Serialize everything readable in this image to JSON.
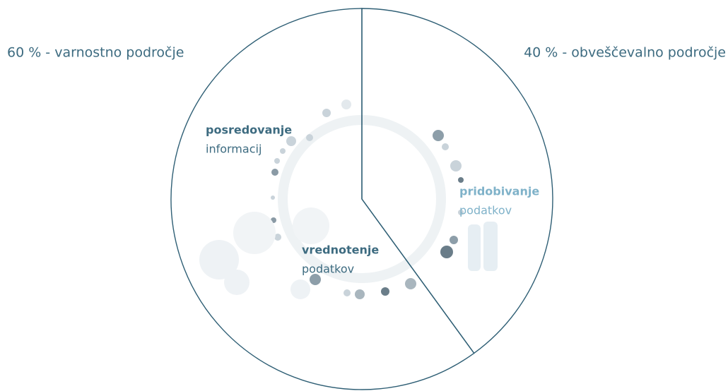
{
  "chart_data": {
    "type": "pie",
    "values": [
      60,
      40
    ],
    "value_labels": [
      "60 % - varnostno področje",
      "40 % - obveščevalno področje"
    ],
    "color": "#2f5f75",
    "annotations": [
      "posredovanje",
      "informacij",
      "pridobivanje",
      "podatkov",
      "vrednotenje",
      "podatkov"
    ]
  }
}
